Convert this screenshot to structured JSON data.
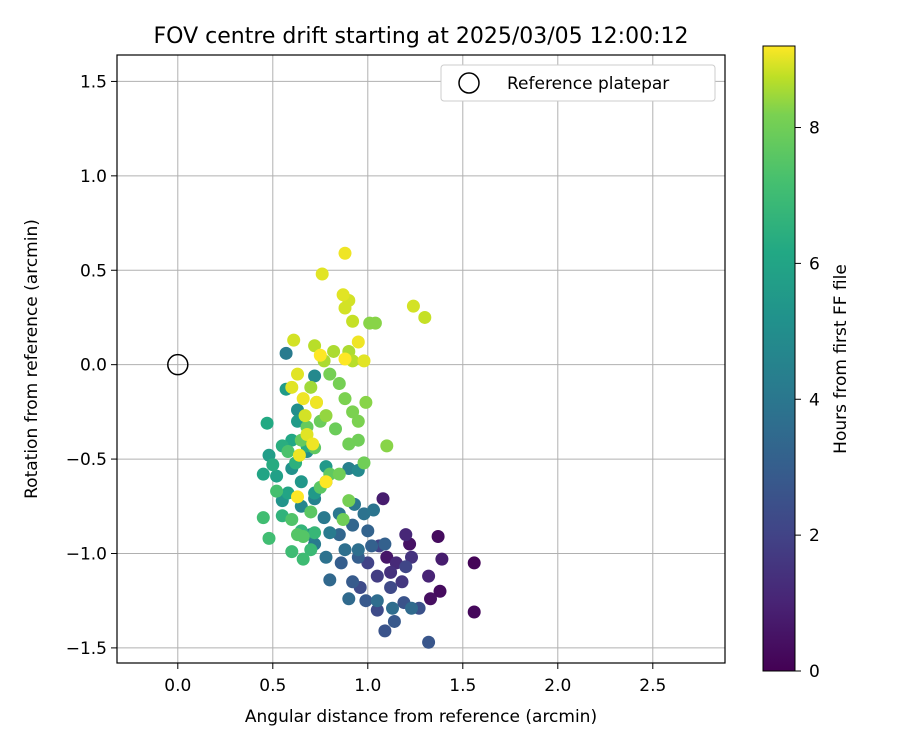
{
  "chart_data": {
    "type": "scatter",
    "title": "FOV centre drift starting at 2025/03/05 12:00:12",
    "xlabel": "Angular distance from reference (arcmin)",
    "ylabel": "Rotation from reference (arcmin)",
    "xlim": [
      -0.32,
      2.88
    ],
    "ylim": [
      -1.58,
      1.64
    ],
    "xticks": [
      0.0,
      0.5,
      1.0,
      1.5,
      2.0,
      2.5
    ],
    "xtick_labels": [
      "0.0",
      "0.5",
      "1.0",
      "1.5",
      "2.0",
      "2.5"
    ],
    "yticks": [
      -1.5,
      -1.0,
      -0.5,
      0.0,
      0.5,
      1.0,
      1.5
    ],
    "ytick_labels": [
      "−1.5",
      "−1.0",
      "−0.5",
      "0.0",
      "0.5",
      "1.0",
      "1.5"
    ],
    "grid": true,
    "legend": {
      "placement": "top-right",
      "entries": [
        {
          "label": "Reference platepar",
          "marker": "open-circle"
        }
      ]
    },
    "reference_point": {
      "x": 0.0,
      "y": 0.0
    },
    "colorbar": {
      "label": "Hours from first FF file",
      "colormap": "viridis",
      "range": [
        0,
        9.2
      ],
      "ticks": [
        0,
        2,
        4,
        6,
        8
      ],
      "tick_labels": [
        "0",
        "2",
        "4",
        "6",
        "8"
      ]
    },
    "point_colors": {
      "marker_edge": "none"
    },
    "series": [
      {
        "points": [
          [
            1.56,
            -1.05,
            0.1
          ],
          [
            1.56,
            -1.31,
            0.2
          ],
          [
            1.38,
            -1.2,
            0.3
          ],
          [
            1.33,
            -1.24,
            0.4
          ],
          [
            1.37,
            -0.91,
            0.3
          ],
          [
            1.22,
            -0.95,
            0.5
          ],
          [
            1.1,
            -1.02,
            0.6
          ],
          [
            1.08,
            -0.71,
            0.8
          ],
          [
            1.39,
            -1.03,
            0.8
          ],
          [
            1.32,
            -1.12,
            1.0
          ],
          [
            1.2,
            -0.9,
            1.1
          ],
          [
            1.15,
            -1.05,
            1.2
          ],
          [
            1.12,
            -1.1,
            1.4
          ],
          [
            1.23,
            -1.02,
            1.5
          ],
          [
            1.18,
            -1.15,
            1.6
          ],
          [
            1.05,
            -1.12,
            1.8
          ],
          [
            1.0,
            -1.05,
            2.0
          ],
          [
            1.06,
            -0.96,
            2.0
          ],
          [
            1.2,
            -1.07,
            2.1
          ],
          [
            1.12,
            -1.18,
            2.2
          ],
          [
            1.05,
            -1.3,
            2.3
          ],
          [
            0.96,
            -1.18,
            2.3
          ],
          [
            1.27,
            -1.29,
            2.5
          ],
          [
            1.19,
            -1.26,
            2.6
          ],
          [
            1.09,
            -1.41,
            2.6
          ],
          [
            1.32,
            -1.47,
            2.7
          ],
          [
            1.14,
            -1.36,
            2.8
          ],
          [
            0.99,
            -1.25,
            2.8
          ],
          [
            0.92,
            -1.15,
            2.9
          ],
          [
            0.86,
            -1.05,
            3.0
          ],
          [
            0.95,
            -1.02,
            3.0
          ],
          [
            1.02,
            -0.96,
            3.1
          ],
          [
            1.09,
            -0.95,
            3.1
          ],
          [
            1.0,
            -0.88,
            3.2
          ],
          [
            0.92,
            -0.85,
            3.3
          ],
          [
            0.85,
            -0.9,
            3.3
          ],
          [
            0.8,
            -1.14,
            3.4
          ],
          [
            0.9,
            -1.24,
            3.5
          ],
          [
            1.23,
            -1.29,
            3.5
          ],
          [
            1.13,
            -1.29,
            3.6
          ],
          [
            1.05,
            -1.25,
            3.6
          ],
          [
            0.95,
            -0.98,
            3.7
          ],
          [
            0.88,
            -0.98,
            3.7
          ],
          [
            0.78,
            -1.02,
            3.8
          ],
          [
            0.98,
            -0.79,
            3.8
          ],
          [
            1.03,
            -0.77,
            3.9
          ],
          [
            0.93,
            -0.74,
            4.0
          ],
          [
            0.85,
            -0.79,
            4.0
          ],
          [
            0.77,
            -0.81,
            4.1
          ],
          [
            0.72,
            -0.95,
            4.2
          ],
          [
            0.8,
            -0.89,
            4.2
          ],
          [
            0.7,
            -0.9,
            4.3
          ],
          [
            0.9,
            -0.55,
            4.4
          ],
          [
            0.78,
            -0.62,
            4.5
          ],
          [
            0.72,
            -0.71,
            4.5
          ],
          [
            0.65,
            -0.75,
            4.6
          ],
          [
            0.57,
            0.06,
            4.2
          ],
          [
            0.72,
            -0.06,
            4.8
          ],
          [
            0.95,
            -0.56,
            4.8
          ],
          [
            0.63,
            -0.24,
            5.0
          ],
          [
            0.68,
            -0.46,
            5.0
          ],
          [
            0.6,
            -0.55,
            5.2
          ],
          [
            0.55,
            -0.72,
            5.3
          ],
          [
            0.65,
            -0.62,
            5.4
          ],
          [
            0.72,
            -0.68,
            5.5
          ],
          [
            0.78,
            -0.54,
            5.5
          ],
          [
            0.63,
            -0.3,
            5.6
          ],
          [
            0.57,
            -0.13,
            5.6
          ],
          [
            0.48,
            -0.48,
            5.7
          ],
          [
            0.52,
            -0.59,
            5.8
          ],
          [
            0.45,
            -0.58,
            6.0
          ],
          [
            0.58,
            -0.68,
            6.0
          ],
          [
            0.6,
            -0.4,
            6.1
          ],
          [
            0.47,
            -0.31,
            6.2
          ],
          [
            0.5,
            -0.53,
            6.3
          ],
          [
            0.55,
            -0.43,
            6.4
          ],
          [
            0.68,
            -0.43,
            6.4
          ],
          [
            0.62,
            -0.52,
            6.5
          ],
          [
            0.55,
            -0.8,
            6.6
          ],
          [
            0.65,
            -0.88,
            6.7
          ],
          [
            0.72,
            -0.89,
            6.8
          ],
          [
            0.7,
            -0.98,
            6.9
          ],
          [
            0.6,
            -0.99,
            7.0
          ],
          [
            0.66,
            -1.03,
            7.0
          ],
          [
            0.45,
            -0.81,
            7.1
          ],
          [
            0.48,
            -0.92,
            7.1
          ],
          [
            0.52,
            -0.67,
            7.2
          ],
          [
            0.58,
            -0.46,
            7.3
          ],
          [
            0.6,
            -0.82,
            7.4
          ],
          [
            0.63,
            -0.9,
            7.5
          ],
          [
            0.66,
            -0.91,
            7.5
          ],
          [
            0.7,
            -0.78,
            7.6
          ],
          [
            0.75,
            -0.65,
            7.6
          ],
          [
            0.8,
            -0.58,
            7.7
          ],
          [
            0.72,
            -0.44,
            7.7
          ],
          [
            0.65,
            -0.4,
            7.8
          ],
          [
            0.68,
            -0.33,
            7.8
          ],
          [
            0.75,
            -0.3,
            7.9
          ],
          [
            0.83,
            -0.34,
            7.9
          ],
          [
            0.9,
            -0.42,
            8.0
          ],
          [
            0.95,
            -0.4,
            8.0
          ],
          [
            0.98,
            -0.52,
            8.0
          ],
          [
            0.85,
            -0.58,
            8.0
          ],
          [
            0.87,
            -0.82,
            8.0
          ],
          [
            0.9,
            -0.72,
            8.1
          ],
          [
            0.8,
            -0.05,
            8.1
          ],
          [
            0.85,
            -0.1,
            8.1
          ],
          [
            0.88,
            -0.18,
            8.2
          ],
          [
            0.92,
            -0.25,
            8.2
          ],
          [
            0.95,
            -0.3,
            8.2
          ],
          [
            1.01,
            0.22,
            8.3
          ],
          [
            1.04,
            0.22,
            8.3
          ],
          [
            0.99,
            -0.2,
            8.3
          ],
          [
            1.1,
            -0.43,
            8.3
          ],
          [
            0.78,
            -0.27,
            8.4
          ],
          [
            0.73,
            -0.2,
            8.4
          ],
          [
            0.7,
            -0.12,
            8.5
          ],
          [
            0.77,
            0.02,
            8.6
          ],
          [
            0.82,
            0.07,
            8.6
          ],
          [
            0.9,
            0.07,
            8.6
          ],
          [
            0.92,
            0.02,
            8.7
          ],
          [
            0.72,
            0.1,
            8.7
          ],
          [
            1.3,
            0.25,
            8.8
          ],
          [
            1.24,
            0.31,
            8.9
          ],
          [
            0.92,
            0.23,
            8.8
          ],
          [
            0.88,
            0.3,
            8.9
          ],
          [
            0.9,
            0.34,
            8.9
          ],
          [
            0.87,
            0.37,
            9.0
          ],
          [
            0.76,
            0.48,
            9.0
          ],
          [
            0.88,
            0.59,
            9.1
          ],
          [
            0.61,
            0.13,
            8.9
          ],
          [
            0.63,
            -0.05,
            9.0
          ],
          [
            0.6,
            -0.12,
            9.0
          ],
          [
            0.66,
            -0.18,
            9.1
          ],
          [
            0.73,
            -0.2,
            9.1
          ],
          [
            0.67,
            -0.27,
            8.9
          ],
          [
            0.68,
            -0.37,
            9.0
          ],
          [
            0.64,
            -0.48,
            9.1
          ],
          [
            0.63,
            -0.7,
            9.2
          ],
          [
            0.78,
            -0.62,
            9.2
          ],
          [
            0.75,
            0.05,
            9.2
          ],
          [
            0.98,
            0.02,
            9.0
          ],
          [
            0.95,
            0.12,
            9.1
          ],
          [
            0.88,
            0.03,
            9.2
          ],
          [
            0.71,
            -0.42,
            9.1
          ]
        ]
      }
    ]
  }
}
